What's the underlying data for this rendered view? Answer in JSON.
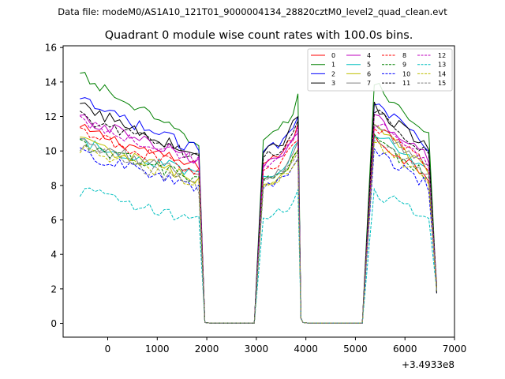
{
  "chart_data": {
    "type": "line",
    "suptitle": "Data file: modeM0/AS1A10_121T01_9000004134_28820cztM0_level2_quad_clean.evt",
    "title": "Quadrant 0 module wise count rates with 100.0s bins.",
    "xlabel": "",
    "ylabel": "",
    "x_offset_label": "+3.4933e8",
    "xlim": [
      -900,
      7000
    ],
    "ylim": [
      -0.8,
      16.1
    ],
    "xticks": [
      0,
      1000,
      2000,
      3000,
      4000,
      5000,
      6000,
      7000
    ],
    "xtick_labels": [
      "0",
      "1000",
      "2000",
      "3000",
      "4000",
      "5000",
      "6000",
      "7000"
    ],
    "yticks": [
      0,
      2,
      4,
      6,
      8,
      10,
      12,
      14,
      16
    ],
    "ytick_labels": [
      "0",
      "2",
      "4",
      "6",
      "8",
      "10",
      "12",
      "14",
      "16"
    ],
    "legend_position": "top-right",
    "x_segments": [
      {
        "start": -560,
        "end": 1860
      },
      {
        "start": 1860,
        "end": 1960
      },
      {
        "start": 1960,
        "end": 3040
      },
      {
        "start": 3040,
        "end": 3840
      },
      {
        "start": 3840,
        "end": 3940
      },
      {
        "start": 3940,
        "end": 5180
      },
      {
        "start": 5180,
        "end": 6640
      }
    ],
    "bin_seconds": 100,
    "series": [
      {
        "name": "0",
        "color": "#ff0000",
        "dash": "solid",
        "levels": [
          11.3,
          9.0,
          0.0,
          9.8,
          0.3,
          0.0,
          10.3
        ]
      },
      {
        "name": "1",
        "color": "#008000",
        "dash": "solid",
        "levels": [
          14.4,
          10.3,
          0.0,
          11.2,
          0.3,
          0.0,
          13.3
        ]
      },
      {
        "name": "2",
        "color": "#0000ff",
        "dash": "solid",
        "levels": [
          12.9,
          10.0,
          0.0,
          10.5,
          0.3,
          0.0,
          12.4
        ]
      },
      {
        "name": "3",
        "color": "#000000",
        "dash": "solid",
        "levels": [
          12.6,
          9.7,
          0.0,
          10.4,
          0.3,
          0.0,
          12.1
        ]
      },
      {
        "name": "4",
        "color": "#bf00bf",
        "dash": "solid",
        "levels": [
          11.9,
          9.5,
          0.0,
          9.5,
          0.3,
          0.0,
          11.6
        ]
      },
      {
        "name": "5",
        "color": "#00bfbf",
        "dash": "solid",
        "levels": [
          10.5,
          8.7,
          0.0,
          9.0,
          0.3,
          0.0,
          10.6
        ]
      },
      {
        "name": "6",
        "color": "#bfbf00",
        "dash": "solid",
        "levels": [
          10.6,
          8.3,
          0.0,
          8.5,
          0.3,
          0.0,
          10.8
        ]
      },
      {
        "name": "7",
        "color": "#808080",
        "dash": "solid",
        "levels": [
          10.5,
          8.5,
          0.0,
          8.8,
          0.3,
          0.0,
          11.0
        ]
      },
      {
        "name": "8",
        "color": "#ff0000",
        "dash": "dashed",
        "levels": [
          11.1,
          8.8,
          0.0,
          9.3,
          0.3,
          0.0,
          11.0
        ]
      },
      {
        "name": "9",
        "color": "#008000",
        "dash": "dashed",
        "levels": [
          10.4,
          8.3,
          0.0,
          8.7,
          0.3,
          0.0,
          10.2
        ]
      },
      {
        "name": "10",
        "color": "#0000ff",
        "dash": "dashed",
        "levels": [
          9.9,
          7.8,
          0.0,
          8.2,
          0.3,
          0.0,
          9.6
        ]
      },
      {
        "name": "11",
        "color": "#000000",
        "dash": "dashed",
        "levels": [
          12.0,
          9.6,
          0.0,
          10.0,
          0.3,
          0.0,
          11.8
        ]
      },
      {
        "name": "12",
        "color": "#bf00bf",
        "dash": "dashed",
        "levels": [
          11.7,
          9.4,
          0.0,
          9.6,
          0.3,
          0.0,
          11.2
        ]
      },
      {
        "name": "13",
        "color": "#00bfbf",
        "dash": "dashed",
        "levels": [
          7.7,
          5.9,
          0.0,
          6.4,
          0.3,
          0.0,
          7.3
        ]
      },
      {
        "name": "14",
        "color": "#bfbf00",
        "dash": "dashed",
        "levels": [
          10.2,
          8.1,
          0.0,
          8.3,
          0.3,
          0.0,
          10.1
        ]
      },
      {
        "name": "15",
        "color": "#808080",
        "dash": "dashed",
        "levels": [
          10.3,
          7.9,
          0.0,
          8.6,
          0.3,
          0.0,
          10.4
        ]
      }
    ]
  }
}
